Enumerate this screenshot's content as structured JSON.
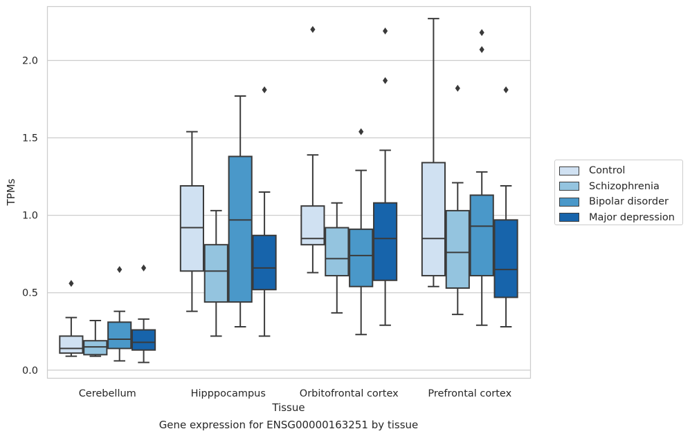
{
  "caption": "Gene expression for ENSG00000163251 by tissue",
  "chart_data": {
    "type": "box",
    "title": "",
    "xlabel": "Tissue",
    "ylabel": "TPMs",
    "ylim": [
      -0.05,
      2.35
    ],
    "yticks": [
      0.0,
      0.5,
      1.0,
      1.5,
      2.0
    ],
    "ytick_labels": [
      "0.0",
      "0.5",
      "1.0",
      "1.5",
      "2.0"
    ],
    "grid": "horizontal",
    "legend_placement": "right",
    "categories": [
      "Cerebellum",
      "Hipppocampus",
      "Orbitofrontal cortex",
      "Prefrontal cortex"
    ],
    "series": [
      {
        "name": "Control",
        "color": "#d0e1f2",
        "boxes": [
          {
            "whislo": 0.09,
            "q1": 0.11,
            "med": 0.14,
            "q3": 0.22,
            "whishi": 0.34,
            "fliers": [
              0.56
            ]
          },
          {
            "whislo": 0.38,
            "q1": 0.64,
            "med": 0.92,
            "q3": 1.19,
            "whishi": 1.54,
            "fliers": []
          },
          {
            "whislo": 0.63,
            "q1": 0.81,
            "med": 0.85,
            "q3": 1.06,
            "whishi": 1.39,
            "fliers": [
              2.2
            ]
          },
          {
            "whislo": 0.54,
            "q1": 0.61,
            "med": 0.85,
            "q3": 1.34,
            "whishi": 2.27,
            "fliers": []
          }
        ]
      },
      {
        "name": "Schizophrenia",
        "color": "#94c4df",
        "boxes": [
          {
            "whislo": 0.09,
            "q1": 0.1,
            "med": 0.15,
            "q3": 0.19,
            "whishi": 0.32,
            "fliers": []
          },
          {
            "whislo": 0.22,
            "q1": 0.44,
            "med": 0.64,
            "q3": 0.81,
            "whishi": 1.03,
            "fliers": []
          },
          {
            "whislo": 0.37,
            "q1": 0.61,
            "med": 0.72,
            "q3": 0.92,
            "whishi": 1.08,
            "fliers": []
          },
          {
            "whislo": 0.36,
            "q1": 0.53,
            "med": 0.76,
            "q3": 1.03,
            "whishi": 1.21,
            "fliers": [
              1.82
            ]
          }
        ]
      },
      {
        "name": "Bipolar disorder",
        "color": "#4a98c9",
        "boxes": [
          {
            "whislo": 0.06,
            "q1": 0.14,
            "med": 0.2,
            "q3": 0.31,
            "whishi": 0.38,
            "fliers": [
              0.65
            ]
          },
          {
            "whislo": 0.28,
            "q1": 0.44,
            "med": 0.97,
            "q3": 1.38,
            "whishi": 1.77,
            "fliers": []
          },
          {
            "whislo": 0.23,
            "q1": 0.54,
            "med": 0.74,
            "q3": 0.91,
            "whishi": 1.29,
            "fliers": [
              1.54
            ]
          },
          {
            "whislo": 0.29,
            "q1": 0.61,
            "med": 0.93,
            "q3": 1.13,
            "whishi": 1.28,
            "fliers": [
              2.07,
              2.18
            ]
          }
        ]
      },
      {
        "name": "Major depression",
        "color": "#1764ab",
        "boxes": [
          {
            "whislo": 0.05,
            "q1": 0.13,
            "med": 0.18,
            "q3": 0.26,
            "whishi": 0.33,
            "fliers": [
              0.66
            ]
          },
          {
            "whislo": 0.22,
            "q1": 0.52,
            "med": 0.66,
            "q3": 0.87,
            "whishi": 1.15,
            "fliers": [
              1.81
            ]
          },
          {
            "whislo": 0.29,
            "q1": 0.58,
            "med": 0.85,
            "q3": 1.08,
            "whishi": 1.42,
            "fliers": [
              1.87,
              2.19
            ]
          },
          {
            "whislo": 0.28,
            "q1": 0.47,
            "med": 0.65,
            "q3": 0.97,
            "whishi": 1.19,
            "fliers": [
              1.81
            ]
          }
        ]
      }
    ]
  }
}
